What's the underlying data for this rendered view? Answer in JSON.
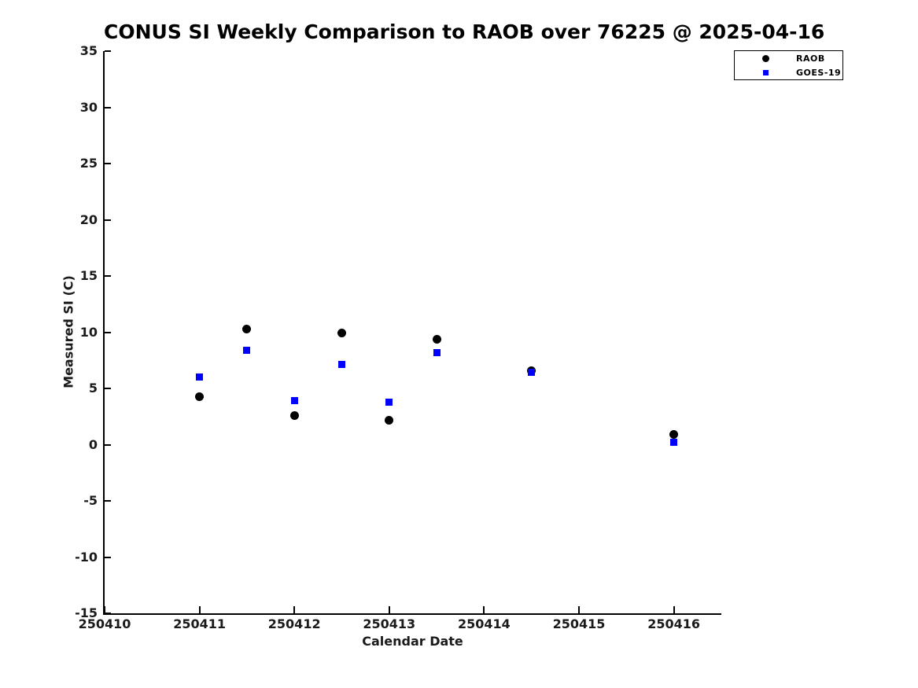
{
  "chart_data": {
    "type": "scatter",
    "title": "CONUS SI Weekly Comparison to RAOB over 76225 @ 2025-04-16",
    "xlabel": "Calendar Date",
    "ylabel": "Measured SI (C)",
    "xlim": [
      250410,
      250416.5
    ],
    "ylim": [
      -15,
      35
    ],
    "x_ticks": [
      250410,
      250411,
      250412,
      250413,
      250414,
      250415,
      250416
    ],
    "y_ticks": [
      35,
      30,
      25,
      20,
      15,
      10,
      5,
      0,
      -5,
      -10,
      -15
    ],
    "grid": false,
    "legend_position": "top-right",
    "series": [
      {
        "name": "RAOB",
        "marker": "circle",
        "color": "#000000",
        "points": [
          [
            250411.0,
            4.3
          ],
          [
            250411.5,
            10.3
          ],
          [
            250412.0,
            2.6
          ],
          [
            250412.5,
            9.9
          ],
          [
            250413.0,
            2.2
          ],
          [
            250413.5,
            9.4
          ],
          [
            250414.5,
            6.6
          ],
          [
            250416.0,
            0.9
          ]
        ]
      },
      {
        "name": "GOES-19",
        "marker": "square",
        "color": "#0000ff",
        "points": [
          [
            250411.0,
            6.0
          ],
          [
            250411.5,
            8.4
          ],
          [
            250412.0,
            3.9
          ],
          [
            250412.5,
            7.1
          ],
          [
            250413.0,
            3.8
          ],
          [
            250413.5,
            8.2
          ],
          [
            250414.5,
            6.4
          ],
          [
            250416.0,
            0.2
          ]
        ]
      }
    ]
  }
}
